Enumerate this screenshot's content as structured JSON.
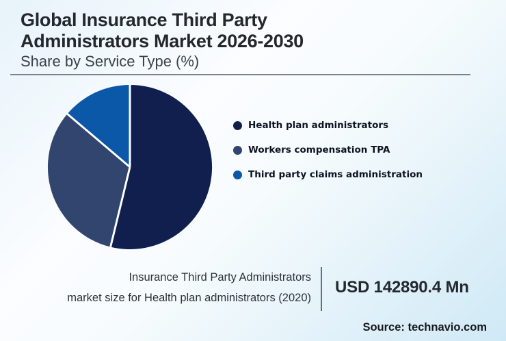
{
  "header": {
    "title_line1": "Global Insurance Third Party",
    "title_line2": "Administrators Market 2026-2030",
    "subtitle": "Share by Service Type (%)"
  },
  "chart_data": {
    "type": "pie",
    "title": "Global Insurance Third Party Administrators Market 2026-2030",
    "subtitle": "Share by Service Type (%)",
    "categories": [
      "Health plan administrators",
      "Workers compensation TPA",
      "Third party claims administration"
    ],
    "values": [
      53.8,
      32.4,
      13.8
    ],
    "unit": "%",
    "colors": [
      "#101f4e",
      "#31456e",
      "#0b58a9"
    ],
    "start_angle_deg": 0,
    "direction": "clockwise",
    "legend_position": "right",
    "data_labels_shown": false,
    "slice_separator_color": "#ffffff"
  },
  "footer": {
    "metric_line1": "Insurance Third Party Administrators",
    "metric_line2": "market size for Health plan administrators (2020)",
    "metric_value": "USD 142890.4 Mn",
    "source": "Source: technavio.com"
  },
  "colors": {
    "background_top_left": "#e7f3fa",
    "background_middle": "#fbfdff",
    "background_bottom_right": "#cfe9f6",
    "title_text": "#24272b",
    "subtitle_text": "#3a4147",
    "rule": "#7e8388",
    "divider": "#5b7389",
    "legend_text": "#0d1321"
  }
}
